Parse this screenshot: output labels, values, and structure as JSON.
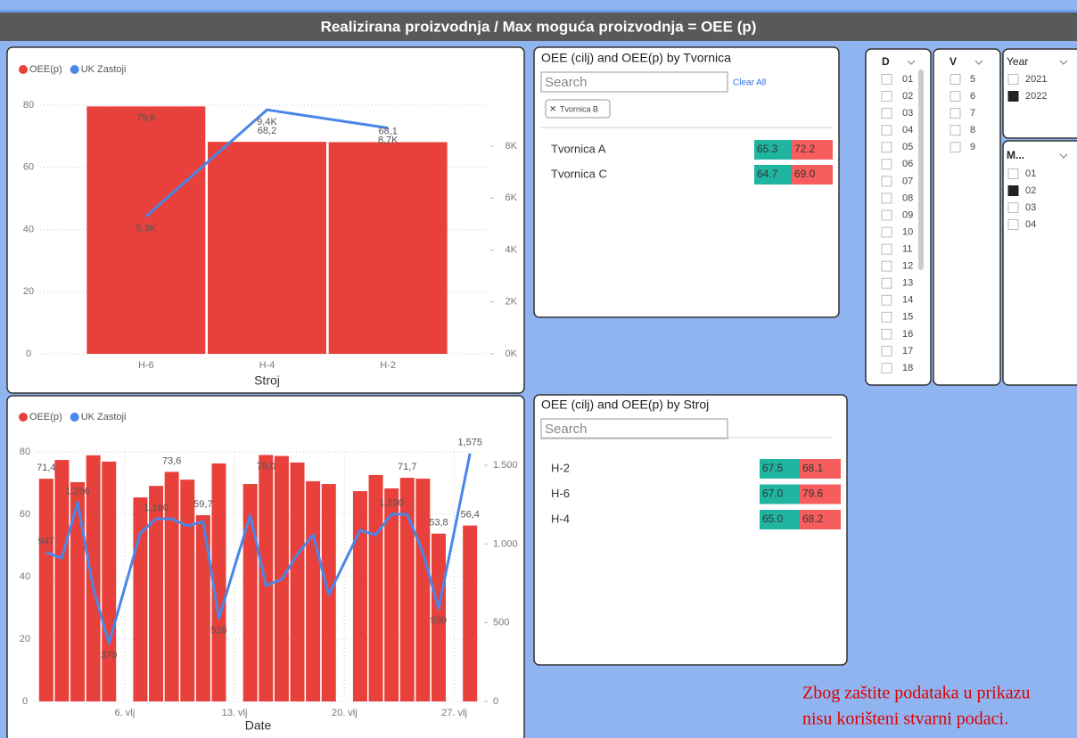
{
  "header": {
    "title": "Realizirana proizvodnja / Max moguća proizvodnja = OEE (p)"
  },
  "chart_data": [
    {
      "type": "combo",
      "xlabel": "Stroj",
      "categories": [
        "H-6",
        "H-4",
        "H-2"
      ],
      "series": [
        {
          "name": "OEE(p)",
          "kind": "bar",
          "color": "#e8403a",
          "values": [
            79.6,
            68.2,
            68.1
          ],
          "value_labels": [
            "79,6",
            "68,2",
            "68,1"
          ]
        },
        {
          "name": "UK Zastoji",
          "kind": "line",
          "axis": "y2",
          "color": "#4a86e8",
          "values": [
            5300,
            9400,
            8700
          ],
          "value_labels": [
            "5,3K",
            "9,4K",
            "8,7K"
          ]
        }
      ],
      "ylim": [
        0,
        80
      ],
      "yticks": [
        0,
        20,
        40,
        60,
        80
      ],
      "y2lim": [
        0,
        9580
      ],
      "y2ticks": [
        {
          "value": 0,
          "label": "0K"
        },
        {
          "value": 2000,
          "label": "2K"
        },
        {
          "value": 4000,
          "label": "4K"
        },
        {
          "value": 6000,
          "label": "6K"
        },
        {
          "value": 8000,
          "label": "8K"
        }
      ],
      "grid": true
    },
    {
      "type": "combo",
      "xlabel": "Date",
      "x": [
        1,
        2,
        3,
        4,
        5,
        7,
        8,
        9,
        10,
        11,
        12,
        14,
        15,
        16,
        17,
        18,
        19,
        21,
        22,
        23,
        24,
        25,
        26,
        28
      ],
      "xlim": [
        0.5,
        28.5
      ],
      "xticks": [
        {
          "value": 6,
          "label": "6. vlj"
        },
        {
          "value": 13,
          "label": "13. vlj"
        },
        {
          "value": 20,
          "label": "20. vlj"
        },
        {
          "value": 27,
          "label": "27. vlj"
        }
      ],
      "series": [
        {
          "name": "OEE(p)",
          "kind": "bar",
          "color": "#e8403a",
          "values": [
            71.4,
            77.4,
            70.3,
            78.9,
            76.9,
            65.4,
            69.1,
            73.6,
            71.1,
            59.7,
            76.3,
            69.7,
            79.0,
            78.7,
            76.6,
            70.6,
            69.7,
            67.4,
            72.6,
            68.3,
            71.7,
            71.4,
            53.8,
            56.4
          ],
          "value_labels": [
            "71,4",
            null,
            null,
            null,
            null,
            null,
            null,
            "73,6",
            null,
            "59,7",
            null,
            null,
            "79,0",
            null,
            null,
            null,
            null,
            null,
            null,
            null,
            "71,7",
            null,
            "53,8",
            "56,4"
          ]
        },
        {
          "name": "UK Zastoji",
          "kind": "line",
          "axis": "y2",
          "color": "#4a86e8",
          "values": [
            947,
            911,
            1266,
            719,
            370,
            1070,
            1160,
            1160,
            1115,
            1143,
            528,
            1183,
            736,
            775,
            934,
            1058,
            679,
            1087,
            1058,
            1190,
            1188,
            945,
            590,
            1575
          ],
          "value_labels": [
            "947",
            null,
            "1,266",
            null,
            "370",
            null,
            "1,160",
            null,
            null,
            null,
            "528",
            null,
            null,
            null,
            null,
            null,
            null,
            null,
            null,
            "1,190",
            null,
            null,
            "590",
            "1,575"
          ]
        }
      ],
      "ylim": [
        0,
        80
      ],
      "yticks": [
        0,
        20,
        40,
        60,
        80
      ],
      "y2lim": [
        0,
        1585
      ],
      "y2ticks": [
        0,
        500,
        {
          "value": 1000,
          "label": "1.000"
        },
        {
          "value": 1500,
          "label": "1.500"
        }
      ],
      "grid": true,
      "xgrid": true
    }
  ],
  "tables": [
    {
      "title": "OEE (cilj) and OEE(p) by Tvornica",
      "search": "Search",
      "clear": "Clear All",
      "filter_chip": "Tvornica B",
      "cell_colors": [
        "#1fb5a1",
        "#f75d5d"
      ],
      "rows": [
        [
          "Tvornica A",
          "65.3",
          "72.2"
        ],
        [
          "Tvornica C",
          "64.7",
          "69.0"
        ]
      ]
    },
    {
      "title": "OEE (cilj) and OEE(p) by Stroj",
      "search": "Search",
      "cell_colors": [
        "#1fb5a1",
        "#f75d5d"
      ],
      "rows": [
        [
          "H-2",
          "67.5",
          "68.1"
        ],
        [
          "H-6",
          "67.0",
          "79.6"
        ],
        [
          "H-4",
          "65.0",
          "68.2"
        ]
      ]
    }
  ],
  "slicers": [
    {
      "title": "D",
      "items": [
        {
          "label": "01",
          "checked": false
        },
        {
          "label": "02",
          "checked": false
        },
        {
          "label": "03",
          "checked": false
        },
        {
          "label": "04",
          "checked": false
        },
        {
          "label": "05",
          "checked": false
        },
        {
          "label": "06",
          "checked": false
        },
        {
          "label": "07",
          "checked": false
        },
        {
          "label": "08",
          "checked": false
        },
        {
          "label": "09",
          "checked": false
        },
        {
          "label": "10",
          "checked": false
        },
        {
          "label": "11",
          "checked": false
        },
        {
          "label": "12",
          "checked": false
        },
        {
          "label": "13",
          "checked": false
        },
        {
          "label": "14",
          "checked": false
        },
        {
          "label": "15",
          "checked": false
        },
        {
          "label": "16",
          "checked": false
        },
        {
          "label": "17",
          "checked": false
        },
        {
          "label": "18",
          "checked": false
        }
      ]
    },
    {
      "title": "V",
      "items": [
        {
          "label": "5",
          "checked": false
        },
        {
          "label": "6",
          "checked": false
        },
        {
          "label": "7",
          "checked": false
        },
        {
          "label": "8",
          "checked": false
        },
        {
          "label": "9",
          "checked": false
        }
      ]
    },
    {
      "title": "Year",
      "items": [
        {
          "label": "2021",
          "checked": false
        },
        {
          "label": "2022",
          "checked": true
        }
      ]
    },
    {
      "title": "M...",
      "items": [
        {
          "label": "01",
          "checked": false
        },
        {
          "label": "02",
          "checked": true
        },
        {
          "label": "03",
          "checked": false
        },
        {
          "label": "04",
          "checked": false
        }
      ]
    }
  ],
  "note": [
    "Zbog zaštite podataka u prikazu",
    "nisu korišteni stvarni podaci."
  ]
}
